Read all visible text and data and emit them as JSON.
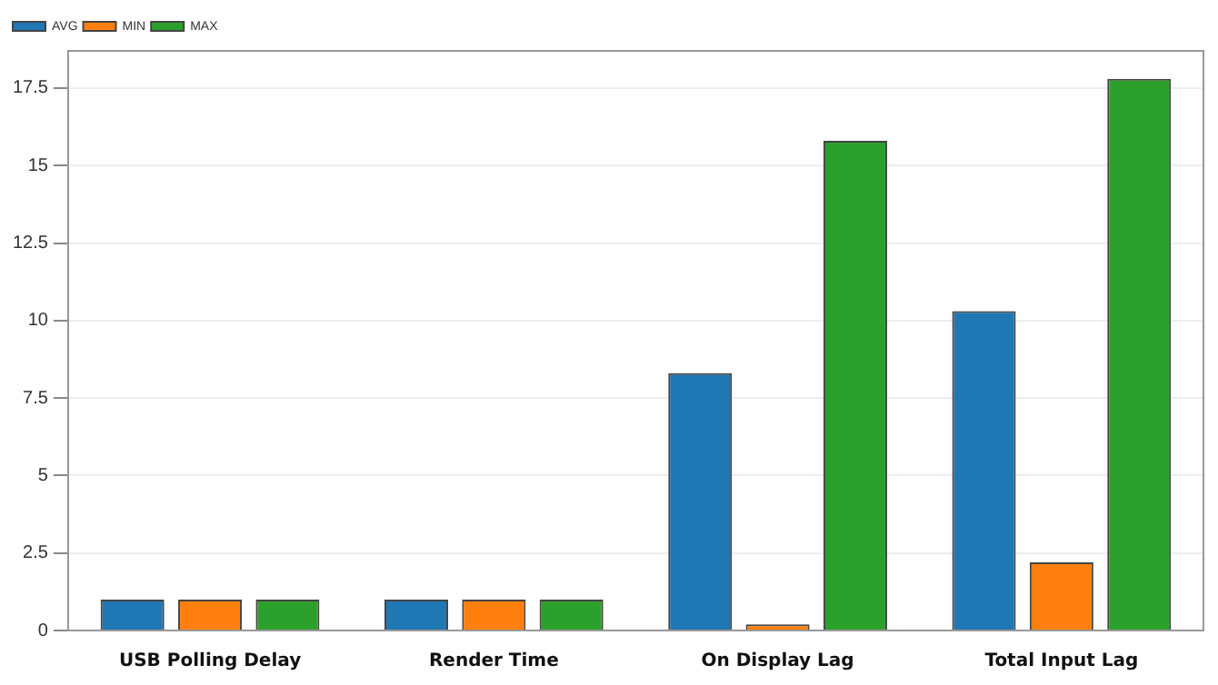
{
  "chart_data": {
    "type": "bar",
    "categories": [
      "USB Polling Delay",
      "Render Time",
      "On Display Lag",
      "Total Input Lag"
    ],
    "series": [
      {
        "name": "AVG",
        "color": "#1f77b4",
        "values": [
          1,
          1,
          8.3,
          10.3
        ]
      },
      {
        "name": "MIN",
        "color": "#ff7f0e",
        "values": [
          1,
          1,
          0.2,
          2.2
        ]
      },
      {
        "name": "MAX",
        "color": "#2ca02c",
        "values": [
          1,
          1,
          15.8,
          17.8
        ]
      }
    ],
    "ylim": [
      0,
      18.7
    ],
    "yticks": [
      0,
      2.5,
      5,
      7.5,
      10,
      12.5,
      15,
      17.5
    ],
    "grid": "y",
    "legend": "top left"
  }
}
